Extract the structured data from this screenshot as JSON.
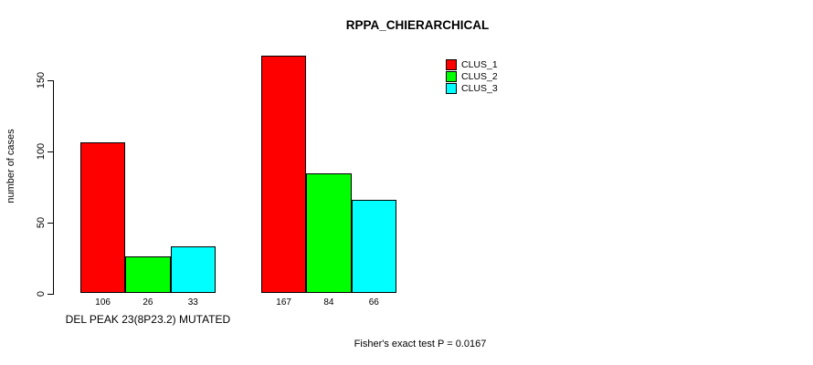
{
  "title": "RPPA_CHIERARCHICAL",
  "footer_annotation": "Fisher's exact test P = 0.0167",
  "colors": {
    "clus_1": "#FF0000",
    "clus_2": "#00FF00",
    "clus_3": "#00FFFF",
    "axis": "#000000",
    "background": "#FFFFFF"
  },
  "chart_data": {
    "type": "bar",
    "title": "RPPA_CHIERARCHICAL",
    "xlabel": "",
    "ylabel": "number of cases",
    "ylim": [
      0,
      170
    ],
    "yticks": [
      0,
      50,
      100,
      150
    ],
    "grid": false,
    "legend_position": "top-right",
    "series": [
      {
        "name": "CLUS_1",
        "color": "#FF0000"
      },
      {
        "name": "CLUS_2",
        "color": "#00FF00"
      },
      {
        "name": "CLUS_3",
        "color": "#00FFFF"
      }
    ],
    "groups": [
      {
        "label": "DEL PEAK 23(8P23.2) MUTATED",
        "values": [
          106,
          26,
          33
        ]
      },
      {
        "label": "",
        "values": [
          167,
          84,
          66
        ]
      }
    ],
    "bar_value_labels": [
      106,
      26,
      33,
      167,
      84,
      66
    ],
    "annotation": "Fisher's exact test P = 0.0167"
  }
}
